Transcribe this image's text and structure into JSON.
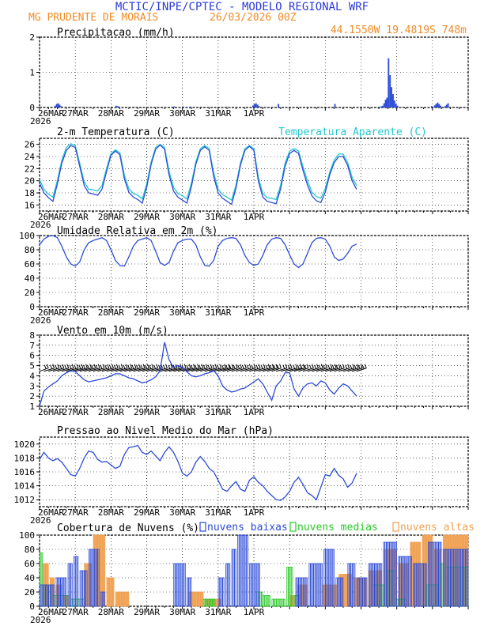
{
  "header": {
    "title": "MCTIC/INPE/CPTEC - MODELO REGIONAL WRF",
    "location": "MG PRUDENTE DE MORAIS",
    "run": "26/03/2026 00Z",
    "coords": "44.1550W 19.4819S 748m"
  },
  "colors": {
    "title": "#2b3ad6",
    "accent": "#f08c28",
    "series_blue": "#2c4bd8",
    "series_cyan": "#22c8d0",
    "clouds_low": "#2c4bd8",
    "clouds_mid": "#28c828",
    "clouds_high": "#f0a050"
  },
  "x_ticks": [
    "26MAR",
    "27MAR",
    "28MAR",
    "29MAR",
    "30MAR",
    "31MAR",
    "1APR"
  ],
  "x_year": "2026",
  "chart_data": [
    {
      "id": "precip",
      "type": "bar",
      "title": "Precipitacao (mm/h)",
      "ylim": [
        0,
        2
      ],
      "yticks": [
        "0",
        "1",
        "2"
      ],
      "x_hours_start": 0,
      "step_hours": 1,
      "nonzero": [
        [
          10,
          0.05
        ],
        [
          11,
          0.1
        ],
        [
          12,
          0.12
        ],
        [
          13,
          0.08
        ],
        [
          14,
          0.04
        ],
        [
          51,
          0.05
        ],
        [
          52,
          0.04
        ],
        [
          90,
          0.03
        ],
        [
          96,
          0.03
        ],
        [
          101,
          0.03
        ],
        [
          143,
          0.06
        ],
        [
          144,
          0.1
        ],
        [
          145,
          0.12
        ],
        [
          146,
          0.08
        ],
        [
          147,
          0.04
        ],
        [
          160,
          0.1
        ],
        [
          198,
          0.1
        ],
        [
          228,
          0.02
        ],
        [
          229,
          0.03
        ],
        [
          230,
          0.05
        ],
        [
          231,
          0.12
        ],
        [
          232,
          0.22
        ],
        [
          233,
          0.28
        ],
        [
          234,
          1.4
        ],
        [
          235,
          0.92
        ],
        [
          236,
          0.58
        ],
        [
          237,
          0.38
        ],
        [
          238,
          0.2
        ],
        [
          239,
          0.1
        ],
        [
          240,
          0.05
        ],
        [
          263,
          0.04
        ],
        [
          265,
          0.06
        ],
        [
          266,
          0.1
        ],
        [
          267,
          0.14
        ],
        [
          268,
          0.1
        ],
        [
          269,
          0.05
        ],
        [
          272,
          0.04
        ],
        [
          273,
          0.08
        ],
        [
          274,
          0.12
        ]
      ]
    },
    {
      "id": "temperature",
      "type": "line",
      "title": "2-m Temperatura (C)",
      "legend": "Temperatura Aparente (C)",
      "ylim": [
        15,
        27
      ],
      "yticks": [
        "16",
        "18",
        "20",
        "22",
        "24",
        "26"
      ],
      "x_hours_start": 0,
      "step_hours": 3,
      "series": [
        {
          "name": "2-m Temperatura (C)",
          "values": [
            19.6,
            18.0,
            17.2,
            16.6,
            19.5,
            22.9,
            25.0,
            25.8,
            25.5,
            22.4,
            19.2,
            18.0,
            17.8,
            17.6,
            18.6,
            21.5,
            24.2,
            24.9,
            24.3,
            20.3,
            18.1,
            17.3,
            16.9,
            16.3,
            18.9,
            22.7,
            25.2,
            25.9,
            25.2,
            21.0,
            18.3,
            17.3,
            16.8,
            16.3,
            19.0,
            22.7,
            25.0,
            25.6,
            25.0,
            20.7,
            18.0,
            17.1,
            16.6,
            16.1,
            18.8,
            22.6,
            25.0,
            25.7,
            25.0,
            20.0,
            17.3,
            16.6,
            16.4,
            16.2,
            18.7,
            22.4,
            24.5,
            25.0,
            24.5,
            21.7,
            19.3,
            17.5,
            16.7,
            16.4,
            18.1,
            21.0,
            23.0,
            24.0,
            24.0,
            22.5,
            20.0,
            18.6
          ]
        },
        {
          "name": "Temperatura Aparente (C)",
          "values": [
            20.2,
            18.6,
            17.8,
            17.3,
            20.1,
            23.4,
            25.5,
            26.1,
            25.8,
            22.9,
            19.8,
            18.6,
            18.5,
            18.3,
            19.2,
            22.0,
            24.5,
            25.1,
            24.6,
            20.9,
            18.7,
            17.9,
            17.6,
            17.0,
            19.5,
            23.1,
            25.5,
            26.0,
            25.5,
            21.6,
            18.9,
            17.9,
            17.5,
            17.0,
            19.6,
            23.1,
            25.3,
            25.8,
            25.3,
            21.3,
            18.6,
            17.7,
            17.3,
            16.8,
            19.3,
            23.0,
            25.3,
            25.8,
            25.3,
            20.6,
            17.9,
            17.2,
            17.1,
            16.9,
            19.3,
            22.9,
            24.9,
            25.3,
            24.9,
            22.3,
            20.0,
            18.1,
            17.4,
            17.1,
            18.7,
            21.5,
            23.4,
            24.4,
            24.4,
            23.0,
            20.6,
            19.2
          ]
        }
      ]
    },
    {
      "id": "humidity",
      "type": "line",
      "title": "Umidade Relativa em 2m (%)",
      "ylim": [
        0,
        100
      ],
      "yticks": [
        "0",
        "20",
        "40",
        "60",
        "80",
        "100"
      ],
      "x_hours_start": 0,
      "step_hours": 3,
      "series": [
        {
          "name": "Umidade Relativa em 2m (%)",
          "values": [
            87,
            95,
            99,
            100,
            97,
            85,
            70,
            60,
            57,
            63,
            80,
            90,
            93,
            95,
            97,
            93,
            80,
            65,
            58,
            57,
            70,
            85,
            93,
            95,
            97,
            93,
            78,
            62,
            58,
            62,
            78,
            90,
            93,
            95,
            95,
            87,
            70,
            58,
            57,
            65,
            85,
            93,
            96,
            97,
            96,
            87,
            72,
            62,
            58,
            60,
            72,
            87,
            95,
            97,
            96,
            87,
            73,
            60,
            55,
            60,
            75,
            90,
            96,
            97,
            95,
            85,
            70,
            65,
            67,
            75,
            85,
            88
          ]
        }
      ]
    },
    {
      "id": "wind",
      "type": "line",
      "title": "Vento em 10m (m/s)",
      "ylim": [
        1,
        8
      ],
      "yticks": [
        "1",
        "2",
        "3",
        "4",
        "5",
        "6",
        "7",
        "8"
      ],
      "barb_level": 4.6,
      "x_hours_start": 0,
      "step_hours": 3,
      "series": [
        {
          "name": "Vento em 10m (m/s)",
          "values": [
            1.0,
            2.5,
            2.9,
            3.2,
            3.5,
            4.0,
            4.3,
            4.5,
            4.4,
            4.0,
            3.6,
            3.4,
            3.5,
            3.6,
            3.7,
            3.8,
            4.0,
            4.2,
            4.2,
            4.0,
            3.8,
            3.7,
            3.5,
            3.3,
            3.4,
            3.6,
            3.9,
            4.5,
            7.3,
            5.6,
            4.8,
            5.0,
            4.8,
            4.4,
            4.0,
            3.9,
            4.0,
            4.2,
            4.3,
            4.5,
            4.0,
            3.0,
            2.6,
            2.4,
            2.5,
            2.7,
            2.8,
            3.1,
            3.4,
            3.7,
            3.2,
            2.4,
            1.6,
            3.0,
            3.5,
            4.3,
            4.3,
            2.7,
            2.0,
            2.8,
            3.2,
            3.3,
            3.0,
            3.5,
            3.3,
            2.6,
            2.2,
            2.8,
            3.2,
            3.0,
            2.5,
            2.0
          ]
        }
      ]
    },
    {
      "id": "pressure",
      "type": "line",
      "title": "Pressao ao Nivel Medio do Mar (hPa)",
      "ylim": [
        1011,
        1021
      ],
      "yticks": [
        "1012",
        "1014",
        "1016",
        "1018",
        "1020"
      ],
      "x_hours_start": 0,
      "step_hours": 3,
      "series": [
        {
          "name": "Pressao ao Nivel Medio do Mar (hPa)",
          "values": [
            1017.8,
            1018.8,
            1018.0,
            1017.6,
            1017.9,
            1017.4,
            1016.5,
            1015.6,
            1015.4,
            1016.5,
            1018.0,
            1019.0,
            1018.8,
            1017.8,
            1017.4,
            1017.5,
            1017.0,
            1016.5,
            1016.8,
            1018.5,
            1019.5,
            1019.6,
            1019.8,
            1018.8,
            1018.5,
            1019.0,
            1018.3,
            1017.6,
            1018.8,
            1019.6,
            1018.8,
            1017.5,
            1015.8,
            1015.4,
            1016.0,
            1017.4,
            1018.2,
            1017.5,
            1016.5,
            1016.0,
            1014.8,
            1013.5,
            1013.2,
            1014.0,
            1014.6,
            1013.5,
            1013.2,
            1014.8,
            1015.3,
            1014.5,
            1014.0,
            1013.2,
            1012.6,
            1012.0,
            1011.9,
            1012.4,
            1013.2,
            1014.5,
            1015.2,
            1014.2,
            1013.0,
            1012.6,
            1012.0,
            1013.8,
            1015.6,
            1015.4,
            1016.5,
            1015.5,
            1015.0,
            1013.8,
            1014.4,
            1015.8
          ]
        }
      ]
    },
    {
      "id": "clouds",
      "type": "bar",
      "title": "Cobertura de Nuvens (%)",
      "legend": [
        "nuvens baixas",
        "nuvens medias",
        "nuvens altas"
      ],
      "ylim": [
        0,
        100
      ],
      "yticks": [
        "0",
        "20",
        "40",
        "60",
        "80",
        "100"
      ],
      "x_hours_start": 0,
      "step_hours": 1,
      "series": [
        {
          "name": "nuvens baixas",
          "segments": [
            [
              0,
              10,
              30
            ],
            [
              11,
              18,
              40
            ],
            [
              19,
              22,
              60
            ],
            [
              23,
              26,
              70
            ],
            [
              27,
              32,
              50
            ],
            [
              33,
              40,
              80
            ],
            [
              41,
              44,
              20
            ],
            [
              90,
              98,
              60
            ],
            [
              99,
              102,
              40
            ],
            [
              120,
              124,
              40
            ],
            [
              125,
              128,
              60
            ],
            [
              129,
              132,
              80
            ],
            [
              133,
              140,
              100
            ],
            [
              141,
              148,
              60
            ],
            [
              172,
              180,
              40
            ],
            [
              181,
              190,
              60
            ],
            [
              191,
              198,
              80
            ],
            [
              199,
              204,
              40
            ],
            [
              207,
              212,
              60
            ],
            [
              213,
              220,
              40
            ],
            [
              221,
              230,
              60
            ],
            [
              231,
              240,
              90
            ],
            [
              241,
              250,
              70
            ],
            [
              251,
              260,
              60
            ],
            [
              261,
              270,
              90
            ],
            [
              271,
              288,
              80
            ]
          ]
        },
        {
          "name": "nuvens medias",
          "segments": [
            [
              0,
              2,
              75
            ],
            [
              3,
              8,
              30
            ],
            [
              9,
              20,
              15
            ],
            [
              21,
              30,
              10
            ],
            [
              110,
              118,
              10
            ],
            [
              145,
              150,
              20
            ],
            [
              150,
              155,
              15
            ],
            [
              156,
              165,
              10
            ],
            [
              166,
              170,
              55
            ],
            [
              171,
              175,
              15
            ],
            [
              224,
              232,
              30
            ],
            [
              233,
              238,
              50
            ],
            [
              239,
              246,
              10
            ],
            [
              260,
              268,
              30
            ],
            [
              269,
              272,
              60
            ],
            [
              273,
              288,
              55
            ]
          ]
        },
        {
          "name": "nuvens altas",
          "segments": [
            [
              2,
              6,
              60
            ],
            [
              7,
              10,
              40
            ],
            [
              11,
              15,
              30
            ],
            [
              16,
              20,
              15
            ],
            [
              30,
              35,
              60
            ],
            [
              36,
              44,
              100
            ],
            [
              45,
              50,
              40
            ],
            [
              51,
              60,
              20
            ],
            [
              100,
              110,
              20
            ],
            [
              111,
              122,
              10
            ],
            [
              168,
              172,
              15
            ],
            [
              173,
              180,
              30
            ],
            [
              190,
              200,
              30
            ],
            [
              201,
              210,
              45
            ],
            [
              211,
              220,
              40
            ],
            [
              221,
              230,
              50
            ],
            [
              231,
              240,
              80
            ],
            [
              241,
              248,
              60
            ],
            [
              249,
              256,
              90
            ],
            [
              257,
              264,
              100
            ],
            [
              265,
              270,
              80
            ],
            [
              271,
              288,
              100
            ]
          ]
        }
      ]
    }
  ]
}
